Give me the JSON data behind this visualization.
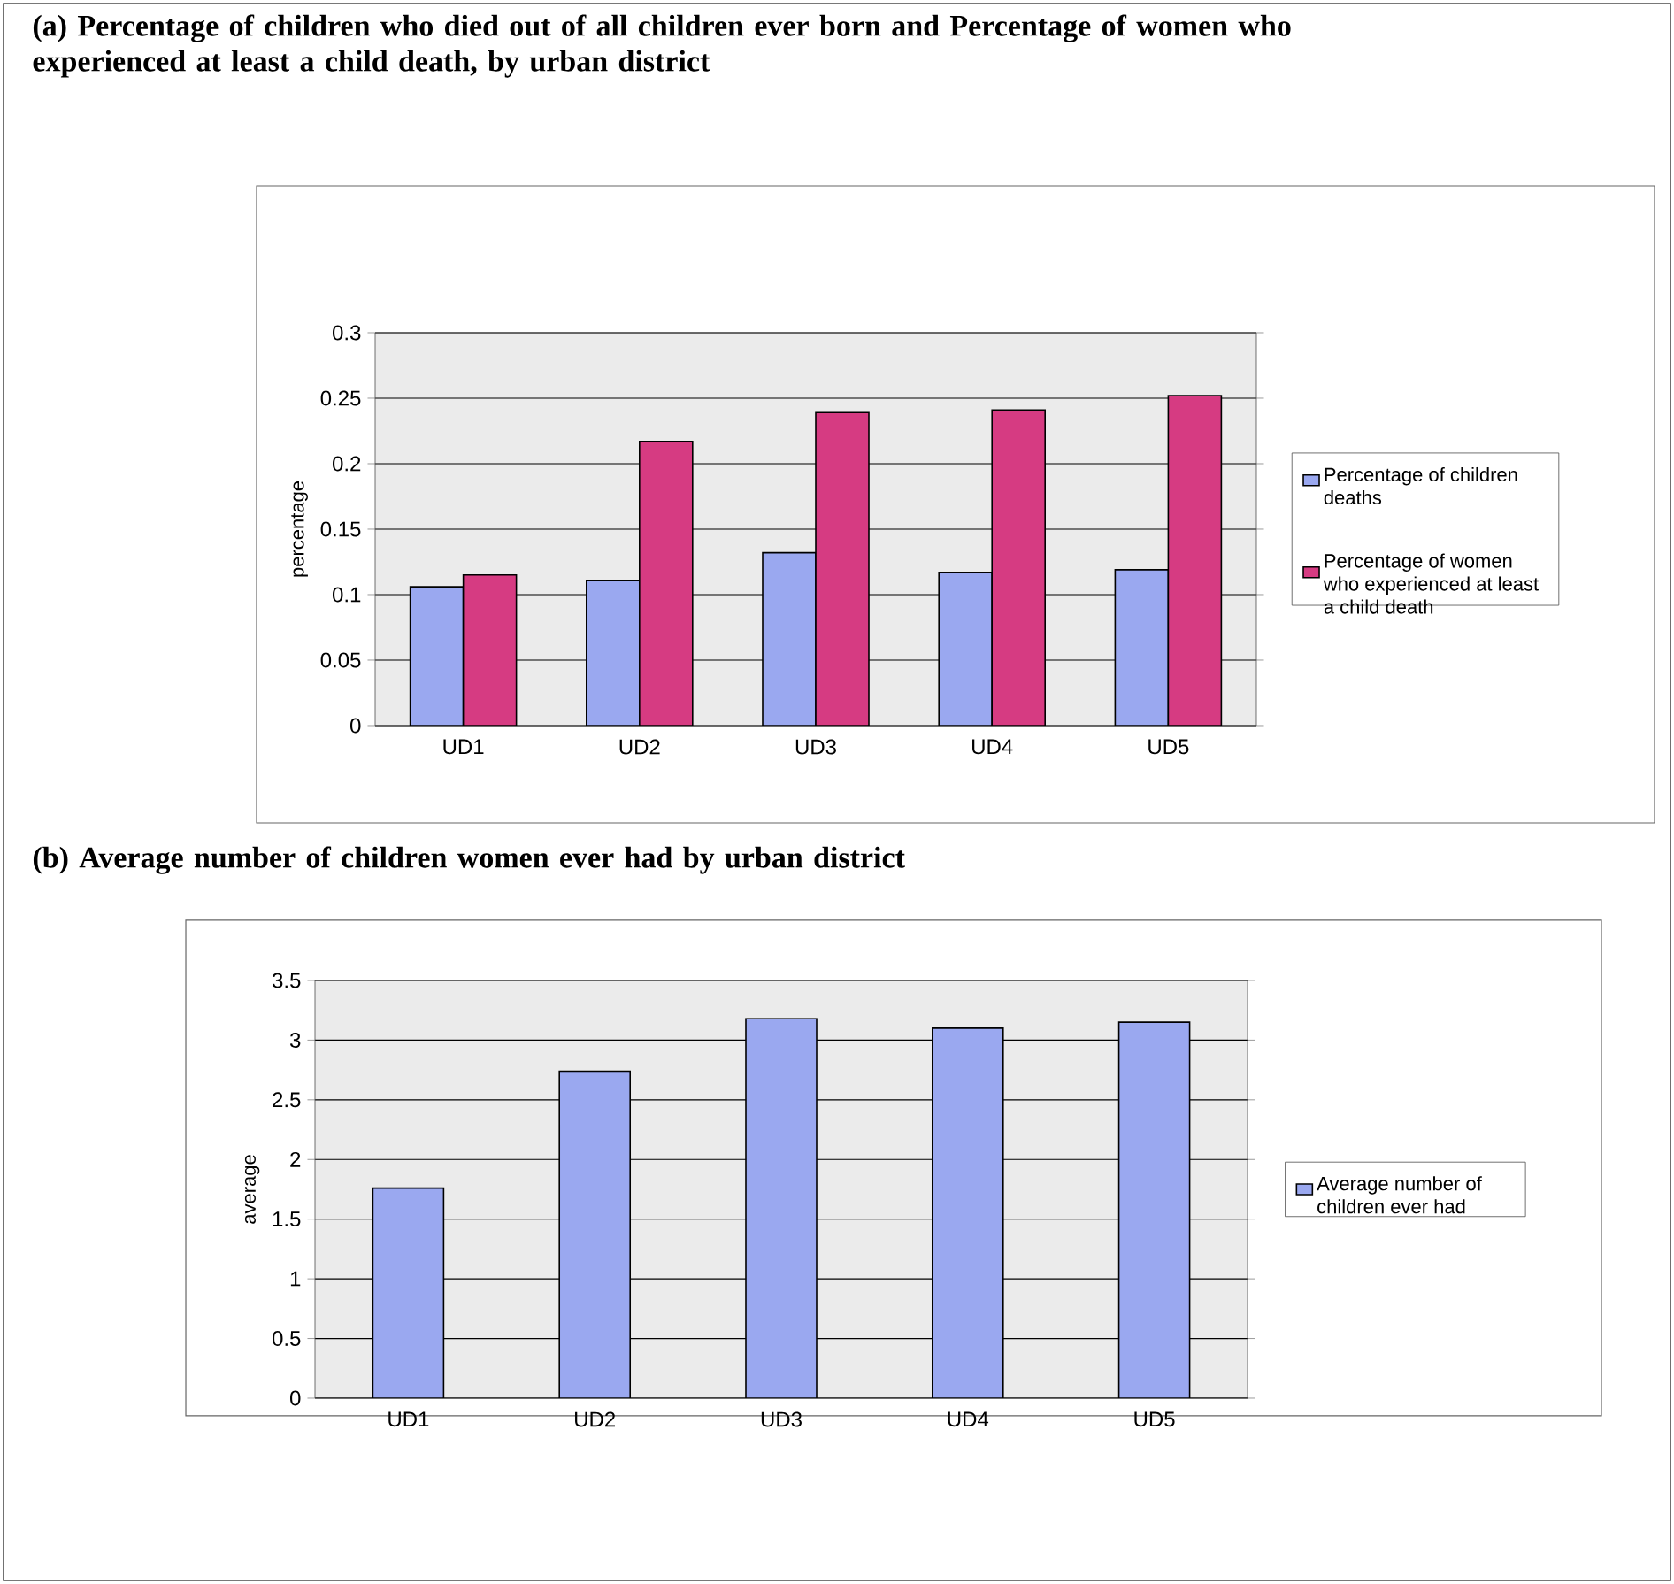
{
  "chart_data": [
    {
      "type": "bar",
      "title": "(a)  Percentage of children who died out of all children ever born and Percentage of women who experienced at least a child death, by urban district",
      "ylabel": "percentage",
      "categories": [
        "UD1",
        "UD2",
        "UD3",
        "UD4",
        "UD5"
      ],
      "series": [
        {
          "name": "Percentage of children deaths",
          "color": "#9aa8f0",
          "values": [
            0.106,
            0.111,
            0.132,
            0.117,
            0.119
          ]
        },
        {
          "name": "Percentage of women who experienced at least a child death",
          "color": "#d63b82",
          "values": [
            0.115,
            0.217,
            0.239,
            0.241,
            0.252
          ]
        }
      ],
      "ylim": [
        0,
        0.3
      ],
      "yticks": [
        0,
        0.05,
        0.1,
        0.15,
        0.2,
        0.25,
        0.3
      ],
      "grid": "y",
      "legend": "right"
    },
    {
      "type": "bar",
      "title": "(b) Average number of children women ever had by urban district",
      "ylabel": "average",
      "categories": [
        "UD1",
        "UD2",
        "UD3",
        "UD4",
        "UD5"
      ],
      "series": [
        {
          "name": "Average number of children ever had",
          "color": "#9aa8f0",
          "values": [
            1.76,
            2.74,
            3.18,
            3.1,
            3.15
          ]
        }
      ],
      "ylim": [
        0,
        3.5
      ],
      "yticks": [
        0,
        0.5,
        1,
        1.5,
        2,
        2.5,
        3,
        3.5
      ],
      "grid": "y",
      "legend": "right"
    }
  ]
}
